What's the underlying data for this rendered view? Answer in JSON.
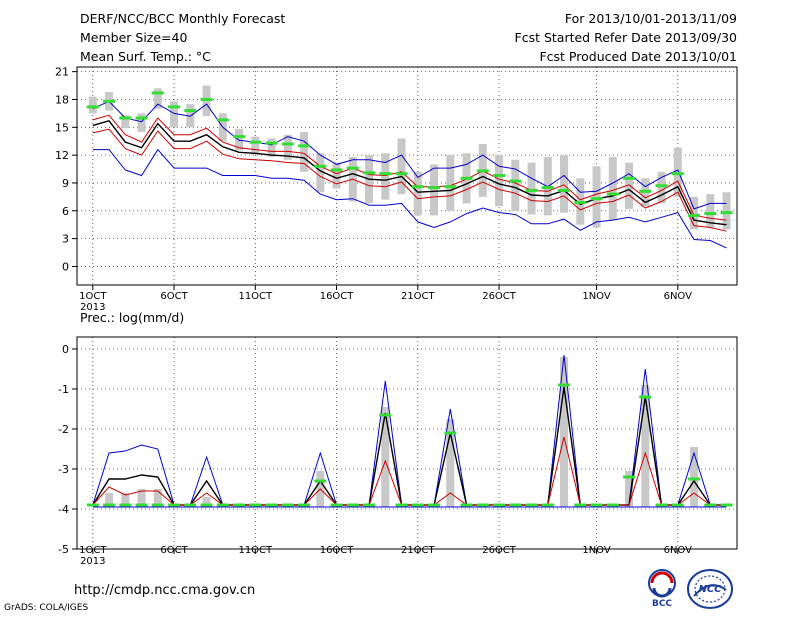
{
  "header": {
    "title": "DERF/NCC/BCC Monthly Forecast",
    "member_size": "Member Size=40",
    "variable": "Mean Surf. Temp.: °C",
    "period": "For 2013/10/01-2013/11/09",
    "refer_date": "Fcst Started Refer Date 2013/09/30",
    "produced_date": "Fcst Produced Date 2013/10/01"
  },
  "footer": {
    "url": "http://cmdp.ncc.cma.gov.cn",
    "grads": "GrADS: COLA/IGES",
    "logo_bcc": "BCC",
    "logo_ncc": "NCC"
  },
  "colors": {
    "mean": "#000000",
    "inner_bound": "#cc0000",
    "outer_bound": "#0000cc",
    "box": "#c8c8c8",
    "obs": "#33dd33",
    "grid": "#444444"
  },
  "chart_data": [
    {
      "type": "line",
      "title": "Mean Surf. Temp.: °C",
      "xlabel": "",
      "ylabel": "",
      "x_tick_labels": [
        "1OCT",
        "6OCT",
        "11OCT",
        "16OCT",
        "21OCT",
        "26OCT",
        "1NOV",
        "6NOV"
      ],
      "x_tick_days": [
        1,
        6,
        11,
        16,
        21,
        26,
        32,
        37
      ],
      "year_label": "2013",
      "ylim": [
        -2,
        21.5
      ],
      "y_ticks": [
        0,
        3,
        6,
        9,
        12,
        15,
        18,
        21
      ],
      "grid": true,
      "days": [
        1,
        2,
        3,
        4,
        5,
        6,
        7,
        8,
        9,
        10,
        11,
        12,
        13,
        14,
        15,
        16,
        17,
        18,
        19,
        20,
        21,
        22,
        23,
        24,
        25,
        26,
        27,
        28,
        29,
        30,
        31,
        32,
        33,
        34,
        35,
        36,
        37,
        38,
        39,
        40
      ],
      "series": [
        {
          "name": "",
          "role": "upper",
          "values": [
            17.0,
            17.8,
            16.0,
            15.6,
            17.5,
            16.5,
            16.2,
            17.5,
            15.0,
            13.6,
            13.4,
            13.1,
            14.0,
            13.5,
            12.0,
            11.0,
            11.5,
            11.5,
            11.2,
            12.0,
            9.6,
            10.6,
            10.6,
            11.0,
            12.0,
            10.8,
            10.5,
            9.5,
            8.6,
            9.8,
            8.0,
            8.1,
            9.0,
            10.0,
            8.6,
            9.6,
            10.4,
            6.2,
            6.8,
            6.8
          ]
        },
        {
          "name": "",
          "role": "inner_upper",
          "values": [
            15.8,
            16.3,
            14.2,
            13.4,
            16.0,
            14.2,
            14.2,
            14.9,
            13.4,
            12.8,
            12.6,
            12.4,
            12.4,
            12.2,
            10.8,
            10.0,
            10.6,
            9.9,
            9.8,
            10.2,
            8.6,
            8.6,
            8.7,
            9.4,
            10.3,
            9.4,
            9.0,
            8.2,
            8.1,
            8.8,
            7.2,
            7.8,
            8.2,
            8.8,
            7.4,
            8.2,
            9.2,
            5.5,
            5.2,
            5.0
          ]
        },
        {
          "name": "",
          "role": "mean",
          "values": [
            15.2,
            15.7,
            13.4,
            12.8,
            15.4,
            13.5,
            13.5,
            14.2,
            12.9,
            12.3,
            12.2,
            12.0,
            11.9,
            11.7,
            10.3,
            9.5,
            10.0,
            9.4,
            9.3,
            9.7,
            8.0,
            8.1,
            8.2,
            8.9,
            9.7,
            8.9,
            8.5,
            7.7,
            7.6,
            8.2,
            6.7,
            7.3,
            7.6,
            8.3,
            6.9,
            7.7,
            8.6,
            5.0,
            4.7,
            4.5
          ]
        },
        {
          "name": "",
          "role": "inner_lower",
          "values": [
            14.4,
            14.8,
            12.7,
            12.0,
            14.6,
            12.7,
            12.7,
            13.5,
            12.1,
            11.6,
            11.5,
            11.4,
            11.2,
            11.1,
            9.7,
            8.9,
            9.4,
            8.7,
            8.6,
            9.1,
            7.3,
            7.5,
            7.6,
            8.3,
            9.1,
            8.3,
            7.9,
            7.1,
            7.0,
            7.6,
            6.1,
            6.8,
            7.0,
            7.7,
            6.3,
            7.0,
            8.0,
            4.4,
            4.2,
            3.8
          ]
        },
        {
          "name": "",
          "role": "lower",
          "values": [
            12.6,
            12.6,
            10.4,
            9.8,
            12.6,
            10.6,
            10.6,
            10.6,
            9.8,
            9.8,
            9.8,
            9.5,
            9.5,
            9.3,
            7.8,
            7.2,
            7.3,
            6.6,
            6.6,
            6.8,
            4.8,
            4.2,
            4.8,
            5.7,
            6.3,
            5.8,
            5.6,
            4.6,
            4.6,
            5.1,
            3.9,
            4.8,
            5.0,
            5.3,
            4.8,
            5.3,
            5.8,
            2.9,
            2.8,
            2.0
          ]
        }
      ],
      "boxes": {
        "days": [
          1,
          2,
          3,
          4,
          5,
          6,
          7,
          8,
          9,
          10,
          11,
          12,
          13,
          14,
          15,
          16,
          17,
          18,
          19,
          20,
          21,
          22,
          23,
          24,
          25,
          26,
          27,
          28,
          29,
          30,
          31,
          32,
          33,
          34,
          35,
          36,
          37,
          38,
          39,
          40
        ],
        "low": [
          16.5,
          16.8,
          14.9,
          14.5,
          17.0,
          15.0,
          15.0,
          16.2,
          13.5,
          12.5,
          12.0,
          11.8,
          11.5,
          10.2,
          8.0,
          8.4,
          7.0,
          6.8,
          7.2,
          7.8,
          5.5,
          5.5,
          6.0,
          6.8,
          7.5,
          6.5,
          6.0,
          5.6,
          5.5,
          5.8,
          4.5,
          4.2,
          5.0,
          6.2,
          6.5,
          6.8,
          7.5,
          4.0,
          4.2,
          4.0
        ],
        "high": [
          18.3,
          18.8,
          16.3,
          16.5,
          19.2,
          17.8,
          17.5,
          19.5,
          16.5,
          14.8,
          14.0,
          13.8,
          14.2,
          14.5,
          12.2,
          11.2,
          11.8,
          12.0,
          12.2,
          13.8,
          10.2,
          11.0,
          12.0,
          12.2,
          13.2,
          12.0,
          11.5,
          11.2,
          11.8,
          12.0,
          9.5,
          10.8,
          11.8,
          11.2,
          9.5,
          10.2,
          12.8,
          7.5,
          7.8,
          8.0
        ]
      },
      "observed": [
        17.2,
        17.8,
        16.0,
        16.0,
        18.7,
        17.2,
        16.8,
        18.0,
        15.8,
        14.0,
        13.4,
        13.3,
        13.2,
        13.0,
        10.8,
        10.4,
        10.6,
        10.1,
        10.0,
        10.0,
        8.6,
        8.5,
        8.6,
        9.5,
        10.3,
        9.8,
        9.2,
        8.2,
        8.5,
        8.2,
        6.9,
        7.3,
        7.8,
        9.5,
        8.1,
        8.7,
        10.0,
        5.5,
        5.7,
        5.8
      ]
    },
    {
      "type": "line",
      "title": "Prec.: log(mm/d)",
      "xlabel": "",
      "ylabel": "",
      "x_tick_labels": [
        "1OCT",
        "6OCT",
        "11OCT",
        "16OCT",
        "21OCT",
        "26OCT",
        "1NOV",
        "6NOV"
      ],
      "x_tick_days": [
        1,
        6,
        11,
        16,
        21,
        26,
        32,
        37
      ],
      "year_label": "2013",
      "ylim": [
        -5,
        0.3
      ],
      "y_ticks": [
        -5,
        -4,
        -3,
        -2,
        -1,
        0
      ],
      "grid": true,
      "days": [
        1,
        2,
        3,
        4,
        5,
        6,
        7,
        8,
        9,
        10,
        11,
        12,
        13,
        14,
        15,
        16,
        17,
        18,
        19,
        20,
        21,
        22,
        23,
        24,
        25,
        26,
        27,
        28,
        29,
        30,
        31,
        32,
        33,
        34,
        35,
        36,
        37,
        38,
        39,
        40
      ],
      "series": [
        {
          "name": "",
          "role": "upper",
          "values": [
            -3.9,
            -2.6,
            -2.55,
            -2.4,
            -2.5,
            -3.9,
            -3.9,
            -2.7,
            -3.9,
            -3.9,
            -3.9,
            -3.9,
            -3.9,
            -3.9,
            -2.6,
            -3.9,
            -3.9,
            -3.9,
            -0.8,
            -3.9,
            -3.9,
            -3.9,
            -1.5,
            -3.9,
            -3.9,
            -3.9,
            -3.9,
            -3.9,
            -3.9,
            -0.15,
            -3.9,
            -3.9,
            -3.9,
            -3.9,
            -0.5,
            -3.9,
            -3.9,
            -2.6,
            -3.9,
            -3.9
          ]
        },
        {
          "name": "",
          "role": "mean",
          "values": [
            -3.9,
            -3.25,
            -3.25,
            -3.15,
            -3.2,
            -3.9,
            -3.9,
            -3.3,
            -3.9,
            -3.9,
            -3.9,
            -3.9,
            -3.9,
            -3.9,
            -3.3,
            -3.9,
            -3.9,
            -3.9,
            -1.6,
            -3.9,
            -3.9,
            -3.9,
            -2.1,
            -3.9,
            -3.9,
            -3.9,
            -3.9,
            -3.9,
            -3.9,
            -0.95,
            -3.9,
            -3.9,
            -3.9,
            -3.9,
            -1.2,
            -3.9,
            -3.9,
            -3.3,
            -3.9,
            -3.9
          ]
        },
        {
          "name": "",
          "role": "inner_bound",
          "values": [
            -3.9,
            -3.45,
            -3.65,
            -3.55,
            -3.55,
            -3.9,
            -3.9,
            -3.6,
            -3.9,
            -3.9,
            -3.9,
            -3.9,
            -3.9,
            -3.9,
            -3.5,
            -3.9,
            -3.9,
            -3.9,
            -2.8,
            -3.9,
            -3.9,
            -3.9,
            -3.6,
            -3.9,
            -3.9,
            -3.9,
            -3.9,
            -3.9,
            -3.9,
            -2.2,
            -3.9,
            -3.9,
            -3.9,
            -3.9,
            -2.6,
            -3.9,
            -3.9,
            -3.6,
            -3.9,
            -3.9
          ]
        },
        {
          "name": "",
          "role": "lower",
          "values": [
            -3.95,
            -3.95,
            -3.95,
            -3.95,
            -3.95,
            -3.95,
            -3.95,
            -3.95,
            -3.95,
            -3.95,
            -3.95,
            -3.95,
            -3.95,
            -3.95,
            -3.95,
            -3.95,
            -3.95,
            -3.95,
            -3.95,
            -3.95,
            -3.95,
            -3.95,
            -3.95,
            -3.95,
            -3.95,
            -3.95,
            -3.95,
            -3.95,
            -3.95,
            -3.95,
            -3.95,
            -3.95,
            -3.95,
            -3.95,
            -3.95,
            -3.95,
            -3.95,
            -3.95,
            -3.95,
            -3.95
          ]
        }
      ],
      "boxes": {
        "days": [
          2,
          3,
          4,
          5,
          8,
          15,
          19,
          23,
          30,
          34,
          35,
          38
        ],
        "low": [
          -3.95,
          -3.95,
          -3.95,
          -3.95,
          -3.95,
          -3.95,
          -3.95,
          -3.95,
          -3.95,
          -3.95,
          -3.95,
          -3.95
        ],
        "high": [
          -3.6,
          -3.6,
          -3.5,
          -3.5,
          -3.7,
          -3.05,
          -1.45,
          -1.75,
          -0.2,
          -3.05,
          -0.9,
          -2.45
        ]
      },
      "observed": [
        -3.9,
        -3.9,
        -3.9,
        -3.9,
        -3.9,
        -3.9,
        -3.9,
        -3.9,
        -3.9,
        -3.9,
        -3.9,
        -3.9,
        -3.9,
        -3.9,
        -3.3,
        -3.9,
        -3.9,
        -3.9,
        -1.65,
        -3.9,
        -3.9,
        -3.9,
        -2.1,
        -3.9,
        -3.9,
        -3.9,
        -3.9,
        -3.9,
        -3.9,
        -0.9,
        -3.9,
        -3.9,
        -3.9,
        -3.2,
        -1.2,
        -3.9,
        -3.9,
        -3.25,
        -3.9,
        -3.9
      ]
    }
  ]
}
